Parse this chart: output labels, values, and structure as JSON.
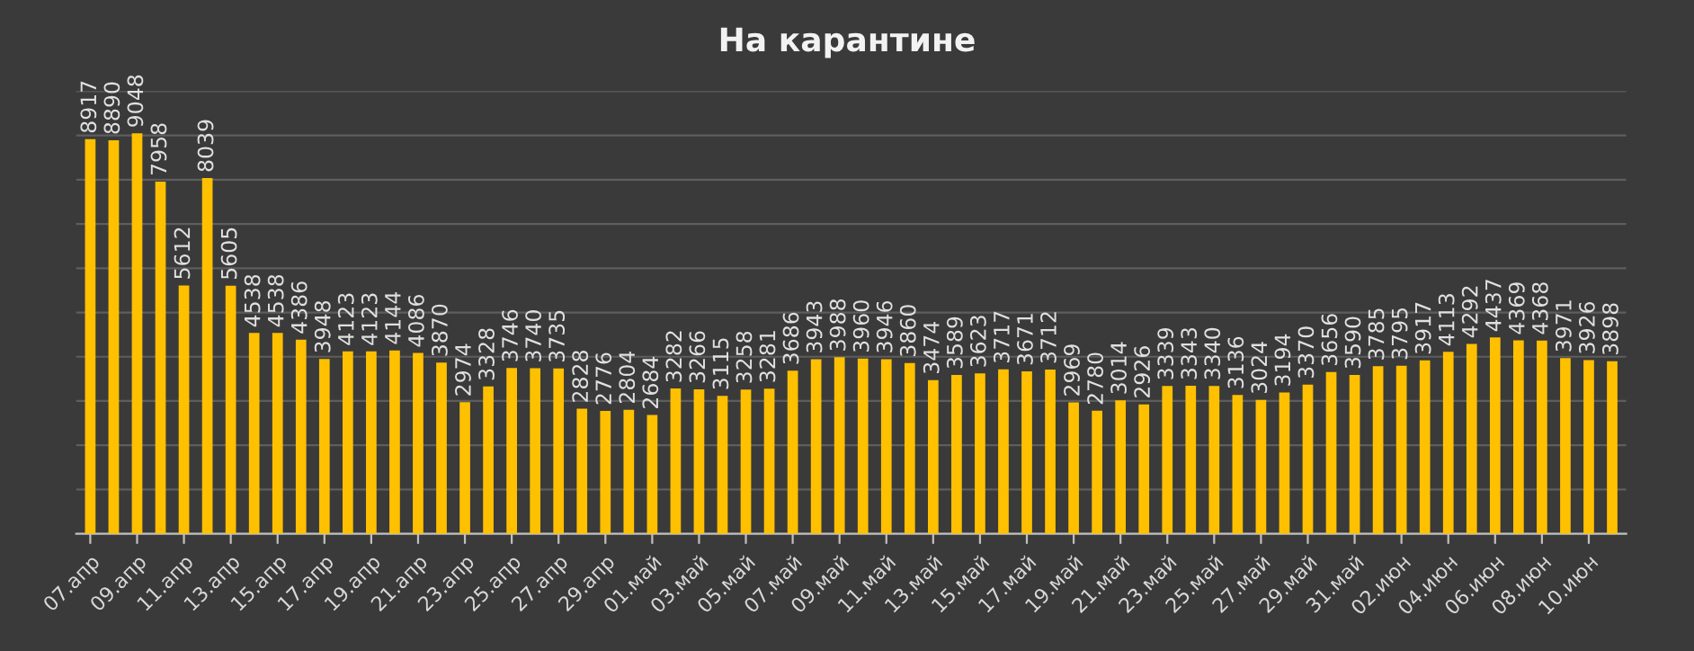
{
  "chart_data": {
    "type": "bar",
    "title": "На карантине",
    "categories": [
      "07.апр",
      null,
      "09.апр",
      null,
      "11.апр",
      null,
      "13.апр",
      null,
      "15.апр",
      null,
      "17.апр",
      null,
      "19.апр",
      null,
      "21.апр",
      null,
      "23.апр",
      null,
      "25.апр",
      null,
      "27.апр",
      null,
      "29.апр",
      null,
      "01.май",
      null,
      "03.май",
      null,
      "05.май",
      null,
      "07.май",
      null,
      "09.май",
      null,
      "11.май",
      null,
      "13.май",
      null,
      "15.май",
      null,
      "17.май",
      null,
      "19.май",
      null,
      "21.май",
      null,
      "23.май",
      null,
      "25.май",
      null,
      "27.май",
      null,
      "29.май",
      null,
      "31.май",
      null,
      "02.июн",
      null,
      "04.июн",
      null,
      "06.июн",
      null,
      "08.июн",
      null,
      "10.июн",
      null
    ],
    "values": [
      8917,
      8890,
      9048,
      7958,
      5612,
      8039,
      5605,
      4538,
      4538,
      4386,
      3948,
      4123,
      4123,
      4144,
      4086,
      3870,
      2974,
      3328,
      3746,
      3740,
      3735,
      2828,
      2776,
      2804,
      2684,
      3282,
      3266,
      3115,
      3258,
      3281,
      3686,
      3943,
      3988,
      3960,
      3946,
      3860,
      3474,
      3589,
      3623,
      3717,
      3671,
      3712,
      2969,
      2780,
      3014,
      2926,
      3339,
      3343,
      3340,
      3136,
      3024,
      3194,
      3370,
      3656,
      3590,
      3785,
      3795,
      3917,
      4113,
      4292,
      4437,
      4369,
      4368,
      3971,
      3926,
      3898
    ],
    "color": "#ffc000",
    "data_labels": true,
    "grid": "y",
    "tick_labels": "x",
    "ylim": [
      0,
      10000
    ],
    "yticks": [
      {
        "value": 0,
        "label": null
      },
      {
        "value": 1000,
        "label": null
      },
      {
        "value": 2000,
        "label": null
      },
      {
        "value": 3000,
        "label": null
      },
      {
        "value": 4000,
        "label": null
      },
      {
        "value": 5000,
        "label": null
      },
      {
        "value": 6000,
        "label": null
      },
      {
        "value": 7000,
        "label": null
      },
      {
        "value": 8000,
        "label": null
      },
      {
        "value": 9000,
        "label": null
      },
      {
        "value": 10000,
        "label": null
      }
    ]
  }
}
